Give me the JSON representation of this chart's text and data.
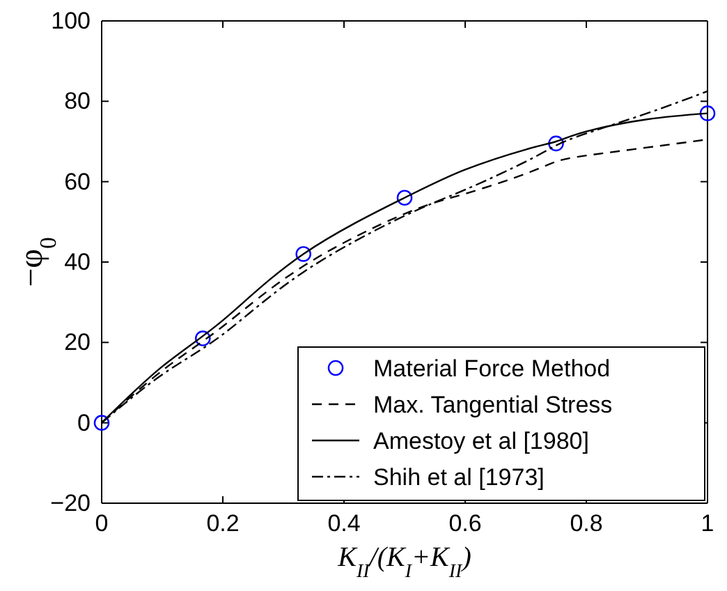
{
  "chart_data": {
    "type": "line",
    "xlabel": "K$_{II}$/(K$_{I}$+K$_{II}$)",
    "ylabel": "−φ$_{0}$",
    "xlim": [
      0,
      1
    ],
    "ylim": [
      -20,
      100
    ],
    "xticks": [
      0,
      0.2,
      0.4,
      0.6,
      0.8,
      1
    ],
    "yticks": [
      {
        "value": -20,
        "label": "−20"
      },
      0,
      20,
      40,
      60,
      80,
      100
    ],
    "legend": "bottom right",
    "grid": false,
    "series": [
      {
        "name": "Material Force Method",
        "type": "scatter",
        "marker": "circle",
        "color": "#0000ff",
        "x": [
          0,
          0.167,
          0.333,
          0.5,
          0.75,
          1
        ],
        "values": [
          0,
          21,
          42,
          56,
          69.5,
          77
        ]
      },
      {
        "name": "Max. Tangential Stress",
        "line_style": "dashed",
        "color": "#000000",
        "x": [
          0,
          0.1,
          0.2,
          0.333,
          0.5,
          0.6,
          0.7,
          0.75,
          0.8,
          0.9,
          1
        ],
        "values": [
          0,
          13,
          24,
          39,
          52,
          57,
          62,
          65,
          66.5,
          68.5,
          70.5
        ]
      },
      {
        "name": "Amestoy et al [1980]",
        "line_style": "solid",
        "color": "#000000",
        "x": [
          0,
          0.1,
          0.2,
          0.333,
          0.5,
          0.6,
          0.7,
          0.75,
          0.8,
          0.9,
          1
        ],
        "values": [
          0,
          14,
          25.5,
          42,
          56,
          63,
          68,
          70,
          72.5,
          75.5,
          77
        ]
      },
      {
        "name": "Shih et al [1973]",
        "line_style": "dashdot",
        "color": "#000000",
        "x": [
          0,
          0.1,
          0.2,
          0.333,
          0.5,
          0.6,
          0.7,
          0.75,
          0.8,
          0.9,
          1
        ],
        "values": [
          0,
          12,
          22,
          37.5,
          51.5,
          58,
          65,
          69,
          72,
          77,
          82.5
        ]
      }
    ]
  }
}
